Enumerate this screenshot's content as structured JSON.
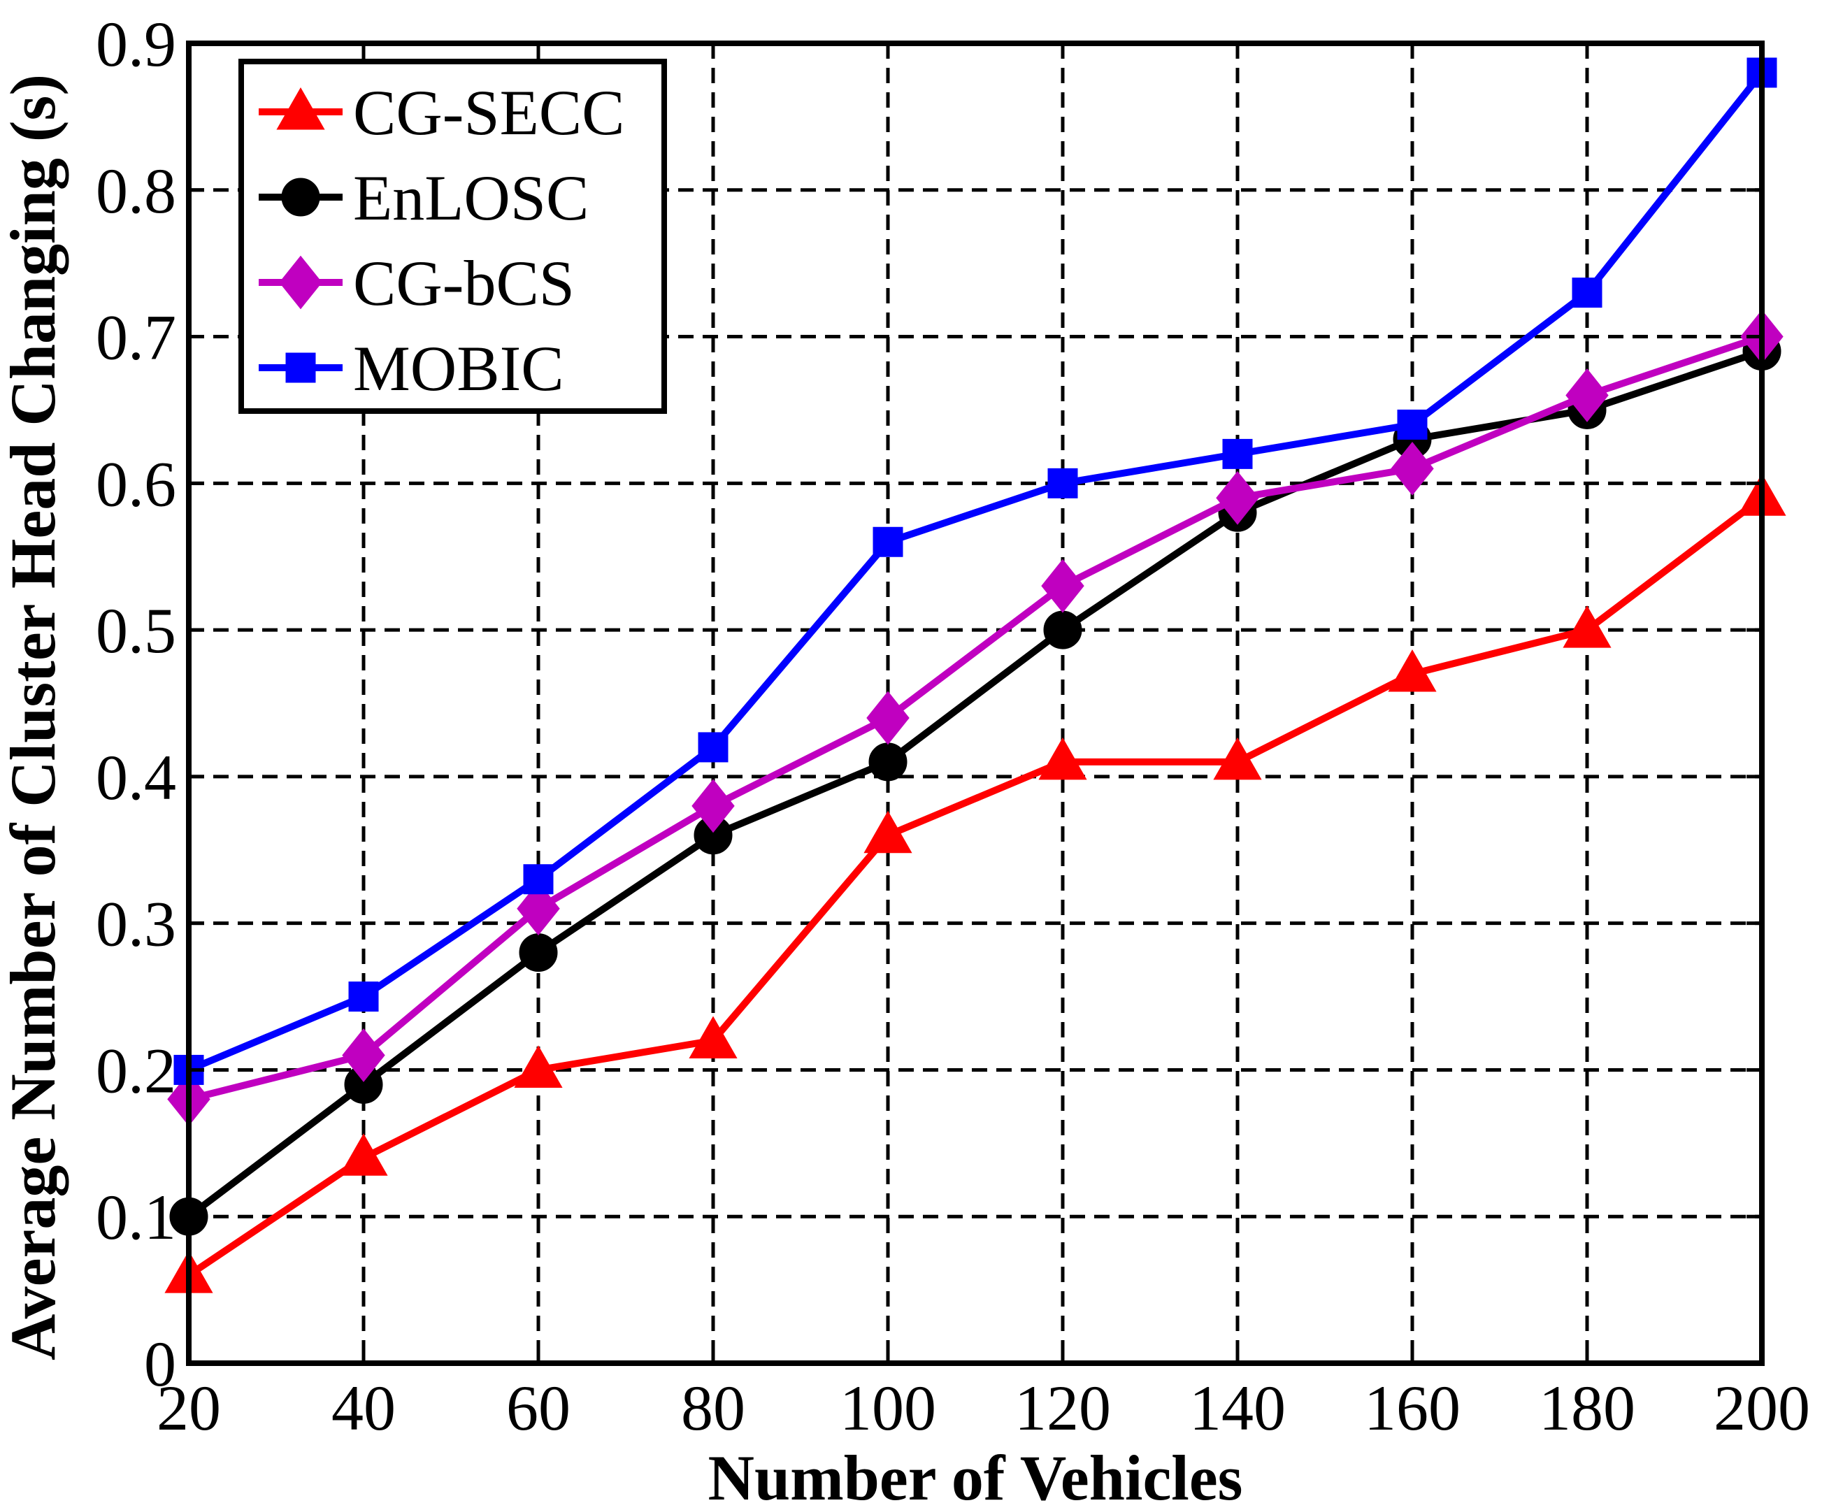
{
  "chart_data": {
    "type": "line",
    "title": "",
    "xlabel": "Number of Vehicles",
    "ylabel": "Average Number of Cluster Head Changing (s)",
    "x": [
      20,
      40,
      60,
      80,
      100,
      120,
      140,
      160,
      180,
      200
    ],
    "xlim": [
      20,
      200
    ],
    "ylim": [
      0,
      0.9
    ],
    "xticks": [
      20,
      40,
      60,
      80,
      100,
      120,
      140,
      160,
      180,
      200
    ],
    "xtick_labels": [
      "20",
      "40",
      "60",
      "80",
      "100",
      "120",
      "140",
      "160",
      "180",
      "200"
    ],
    "yticks": [
      0,
      0.1,
      0.2,
      0.3,
      0.4,
      0.5,
      0.6,
      0.7,
      0.8,
      0.9
    ],
    "ytick_labels": [
      "0",
      "0.1",
      "0.2",
      "0.3",
      "0.4",
      "0.5",
      "0.6",
      "0.7",
      "0.8",
      "0.9"
    ],
    "grid": true,
    "legend_position": "top-left",
    "series": [
      {
        "name": "CG-SECC",
        "color": "#ff0000",
        "marker": "triangle",
        "values": [
          0.06,
          0.14,
          0.2,
          0.22,
          0.36,
          0.41,
          0.41,
          0.47,
          0.5,
          0.59
        ]
      },
      {
        "name": "EnLOSC",
        "color": "#000000",
        "marker": "circle",
        "values": [
          0.1,
          0.19,
          0.28,
          0.36,
          0.41,
          0.5,
          0.58,
          0.63,
          0.65,
          0.69
        ]
      },
      {
        "name": "CG-bCS",
        "color": "#c000c0",
        "marker": "diamond",
        "values": [
          0.18,
          0.21,
          0.31,
          0.38,
          0.44,
          0.53,
          0.59,
          0.61,
          0.66,
          0.7
        ]
      },
      {
        "name": "MOBIC",
        "color": "#0000ff",
        "marker": "square",
        "values": [
          0.2,
          0.25,
          0.33,
          0.42,
          0.56,
          0.6,
          0.62,
          0.64,
          0.73,
          0.88
        ]
      }
    ]
  }
}
